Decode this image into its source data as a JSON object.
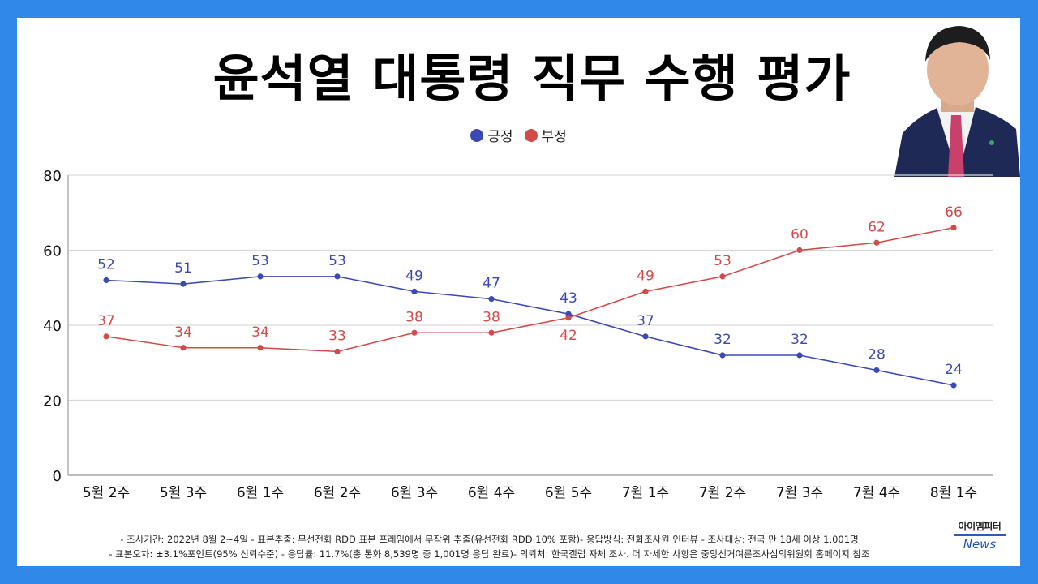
{
  "title": "윤석열 대통령 직무 수행 평가",
  "legend": [
    {
      "label": "긍정",
      "color": "#3b4ab3"
    },
    {
      "label": "부정",
      "color": "#d24a4a"
    }
  ],
  "portrait_alt": "대통령 사진",
  "chart_data": {
    "type": "line",
    "title": "윤석열 대통령 직무 수행 평가",
    "xlabel": "",
    "ylabel": "",
    "categories": [
      "5월 2주",
      "5월 3주",
      "6월 1주",
      "6월 2주",
      "6월 3주",
      "6월 4주",
      "6월 5주",
      "7월 1주",
      "7월 2주",
      "7월 3주",
      "7월 4주",
      "8월 1주"
    ],
    "series": [
      {
        "name": "긍정",
        "color": "#3b4ab3",
        "values": [
          52,
          51,
          53,
          53,
          49,
          47,
          43,
          37,
          32,
          32,
          28,
          24
        ]
      },
      {
        "name": "부정",
        "color": "#d24a4a",
        "values": [
          37,
          34,
          34,
          33,
          38,
          38,
          42,
          49,
          53,
          60,
          62,
          66
        ]
      }
    ],
    "ylim": [
      0,
      80
    ],
    "yticks": [
      0,
      20,
      40,
      60,
      80
    ],
    "grid": true,
    "legend_position": "top-center",
    "data_labels": true
  },
  "footer": {
    "line1": "- 조사기간: 2022년 8월 2~4일 - 표본추출: 무선전화 RDD 표본 프레임에서 무작위 추출(유선전화 RDD 10% 포함)- 응답방식: 전화조사원 인터뷰 - 조사대상: 전국 만 18세 이상 1,001명",
    "line2": "- 표본오차: ±3.1%포인트(95% 신뢰수준) - 응답률: 11.7%(총 통화 8,539명 중 1,001명 응답 완료)- 의뢰처: 한국갤럽 자체 조사. 더 자세한 사항은 중앙선거여론조사심의위원회 홈페이지 참조"
  },
  "logo": {
    "korean": "아이엠피터",
    "english": "News"
  }
}
